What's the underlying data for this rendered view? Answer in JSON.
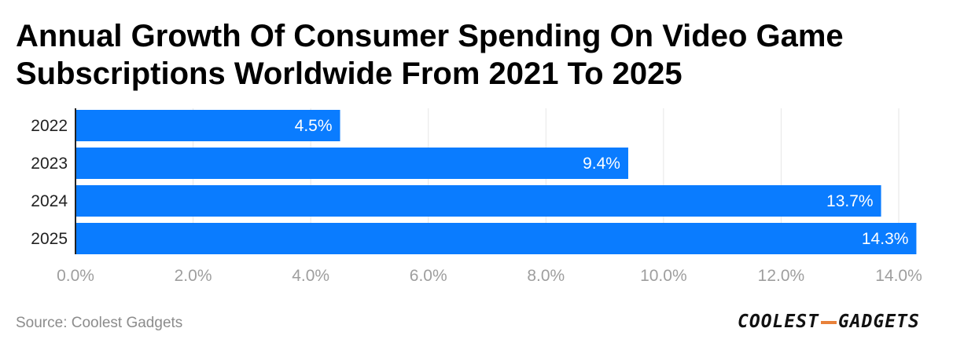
{
  "title": "Annual Growth Of Consumer Spending On Video Game Subscriptions Worldwide From 2021 To 2025",
  "source": "Source: Coolest Gadgets",
  "brand": {
    "left": "COOLEST",
    "right": "GADGETS"
  },
  "colors": {
    "bar": "#0a7cff",
    "grid": "#e6e6e6",
    "axis": "#222222"
  },
  "chart_data": {
    "type": "bar",
    "orientation": "horizontal",
    "title": "Annual Growth Of Consumer Spending On Video Game Subscriptions Worldwide From 2021 To 2025",
    "categories": [
      "2022",
      "2023",
      "2024",
      "2025"
    ],
    "values": [
      4.5,
      9.4,
      13.7,
      14.3
    ],
    "value_labels": [
      "4.5%",
      "9.4%",
      "13.7%",
      "14.3%"
    ],
    "xlim": [
      0,
      14
    ],
    "xticks": [
      0,
      2,
      4,
      6,
      8,
      10,
      12,
      14
    ],
    "xtick_labels": [
      "0.0%",
      "2.0%",
      "4.0%",
      "6.0%",
      "8.0%",
      "10.0%",
      "12.0%",
      "14.0%"
    ],
    "xlabel": "",
    "ylabel": "",
    "grid": true
  }
}
